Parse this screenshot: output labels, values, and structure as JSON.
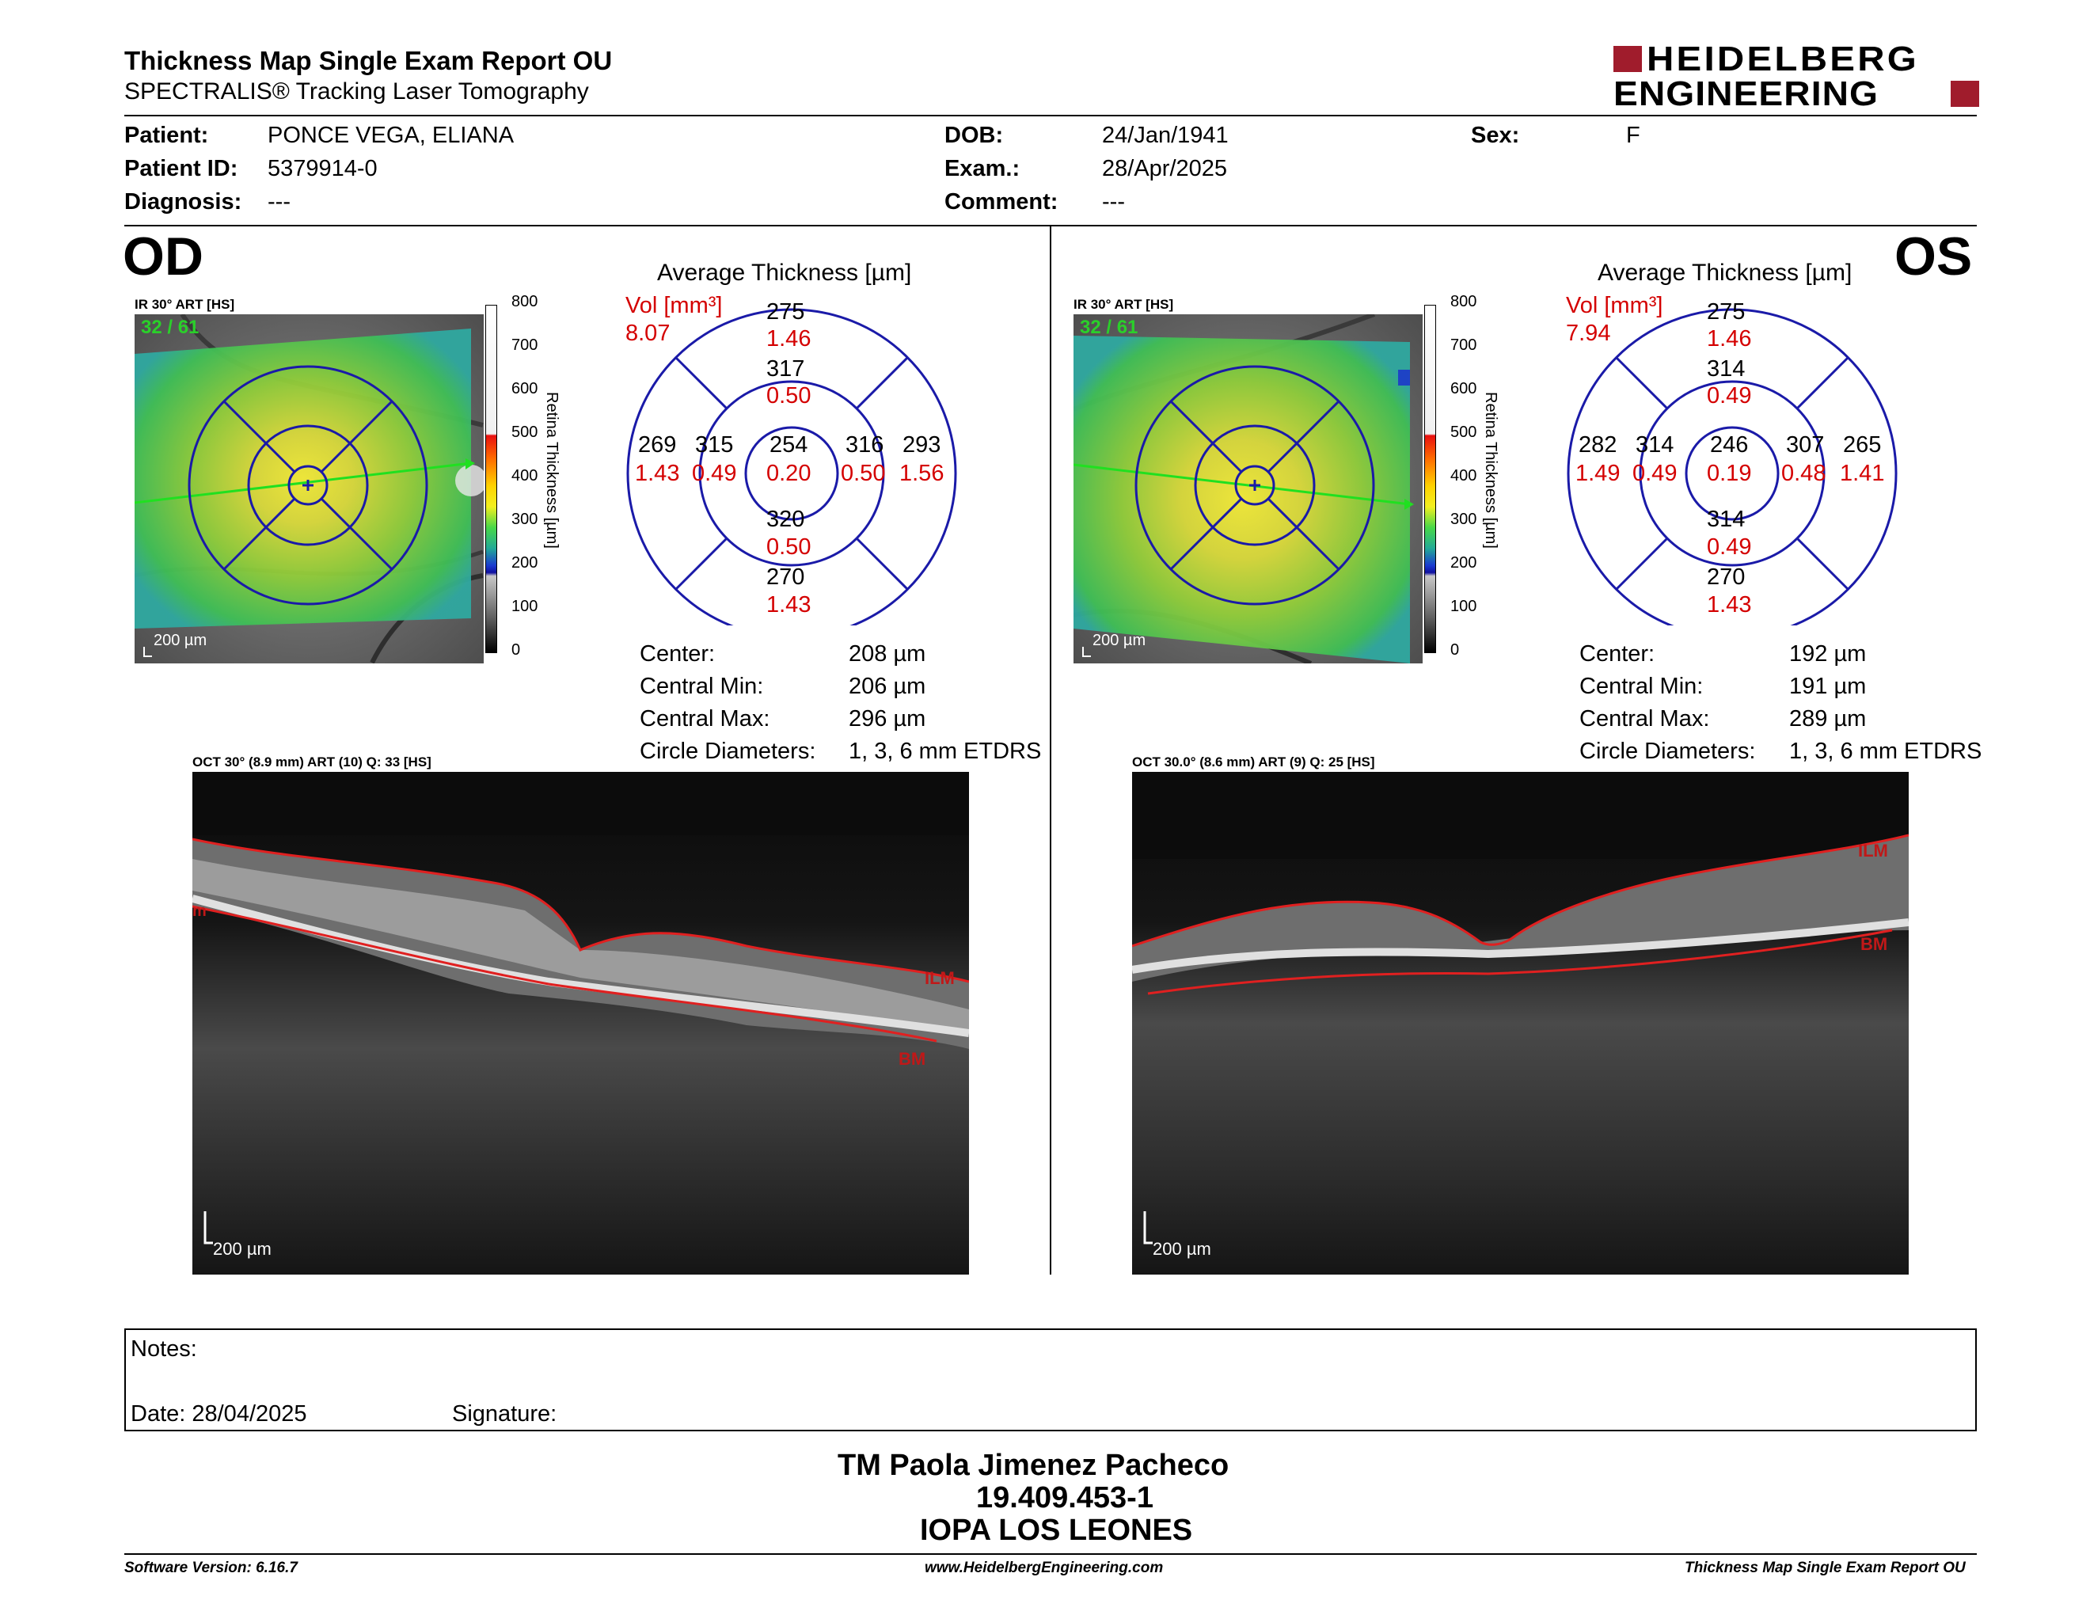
{
  "header": {
    "title": "Thickness Map Single Exam Report OU",
    "subtitle": "SPECTRALIS® Tracking Laser Tomography",
    "logo_line1": "HEIDELBERG",
    "logo_line2": "ENGINEERING"
  },
  "patient": {
    "patient_label": "Patient:",
    "patient_value": "PONCE VEGA, ELIANA",
    "id_label": "Patient ID:",
    "id_value": "5379914-0",
    "diagnosis_label": "Diagnosis:",
    "diagnosis_value": "---",
    "dob_label": "DOB:",
    "dob_value": "24/Jan/1941",
    "exam_label": "Exam.:",
    "exam_value": "28/Apr/2025",
    "comment_label": "Comment:",
    "comment_value": "---",
    "sex_label": "Sex:",
    "sex_value": "F"
  },
  "od": {
    "eye": "OD",
    "ir_label": "IR 30° ART [HS]",
    "ir_counter": "32 / 61",
    "ir_scale": "200 µm",
    "scale_ticks": [
      "800",
      "700",
      "600",
      "500",
      "400",
      "300",
      "200",
      "100",
      "0"
    ],
    "scale_title": "Retina Thickness [µm]",
    "avg_title": "Average Thickness [µm]",
    "vol_label": "Vol [mm³]",
    "vol_value": "8.07",
    "grid": {
      "center_t": "254",
      "center_v": "0.20",
      "inner_sup_t": "317",
      "inner_sup_v": "0.50",
      "inner_inf_t": "320",
      "inner_inf_v": "0.50",
      "inner_left_t": "315",
      "inner_left_v": "0.49",
      "inner_right_t": "316",
      "inner_right_v": "0.50",
      "outer_sup_t": "275",
      "outer_sup_v": "1.46",
      "outer_inf_t": "270",
      "outer_inf_v": "1.43",
      "outer_left_t": "269",
      "outer_left_v": "1.43",
      "outer_right_t": "293",
      "outer_right_v": "1.56"
    },
    "stats": {
      "center_label": "Center:",
      "center_value": "208 µm",
      "min_label": "Central Min:",
      "min_value": "206 µm",
      "max_label": "Central Max:",
      "max_value": "296 µm",
      "circ_label": "Circle Diameters:",
      "circ_value": "1, 3, 6 mm ETDRS"
    },
    "oct_label": "OCT 30° (8.9 mm) ART (10) Q: 33 [HS]",
    "oct_scale": "200 µm",
    "ilm_label": "ILM",
    "bm_label": "BM",
    "m_label": "m"
  },
  "os": {
    "eye": "OS",
    "ir_label": "IR 30° ART [HS]",
    "ir_counter": "32 / 61",
    "ir_scale": "200 µm",
    "scale_ticks": [
      "800",
      "700",
      "600",
      "500",
      "400",
      "300",
      "200",
      "100",
      "0"
    ],
    "scale_title": "Retina Thickness [µm]",
    "avg_title": "Average Thickness [µm]",
    "vol_label": "Vol [mm³]",
    "vol_value": "7.94",
    "grid": {
      "center_t": "246",
      "center_v": "0.19",
      "inner_sup_t": "314",
      "inner_sup_v": "0.49",
      "inner_inf_t": "314",
      "inner_inf_v": "0.49",
      "inner_left_t": "314",
      "inner_left_v": "0.49",
      "inner_right_t": "307",
      "inner_right_v": "0.48",
      "outer_sup_t": "275",
      "outer_sup_v": "1.46",
      "outer_inf_t": "270",
      "outer_inf_v": "1.43",
      "outer_left_t": "282",
      "outer_left_v": "1.49",
      "outer_right_t": "265",
      "outer_right_v": "1.41"
    },
    "stats": {
      "center_label": "Center:",
      "center_value": "192 µm",
      "min_label": "Central Min:",
      "min_value": "191 µm",
      "max_label": "Central Max:",
      "max_value": "289 µm",
      "circ_label": "Circle Diameters:",
      "circ_value": "1, 3, 6 mm ETDRS"
    },
    "oct_label": "OCT 30.0° (8.6 mm) ART (9) Q: 25 [HS]",
    "oct_scale": "200 µm",
    "ilm_label": "ILM",
    "bm_label": "BM"
  },
  "notes": {
    "notes_label": "Notes:",
    "date_label": "Date: 28/04/2025",
    "signature_label": "Signature:"
  },
  "signer": {
    "name": "TM Paola Jimenez Pacheco",
    "id": "19.409.453-1",
    "institution": "IOPA LOS LEONES"
  },
  "footer": {
    "version": "Software Version: 6.16.7",
    "website": "www.HeidelbergEngineering.com",
    "report": "Thickness Map Single Exam Report OU"
  },
  "colors": {
    "ring_blue": "#1a1aa8",
    "value_red": "#d40000",
    "logo_red": "#a01c2c",
    "overlay_green": "#2ad02a"
  }
}
